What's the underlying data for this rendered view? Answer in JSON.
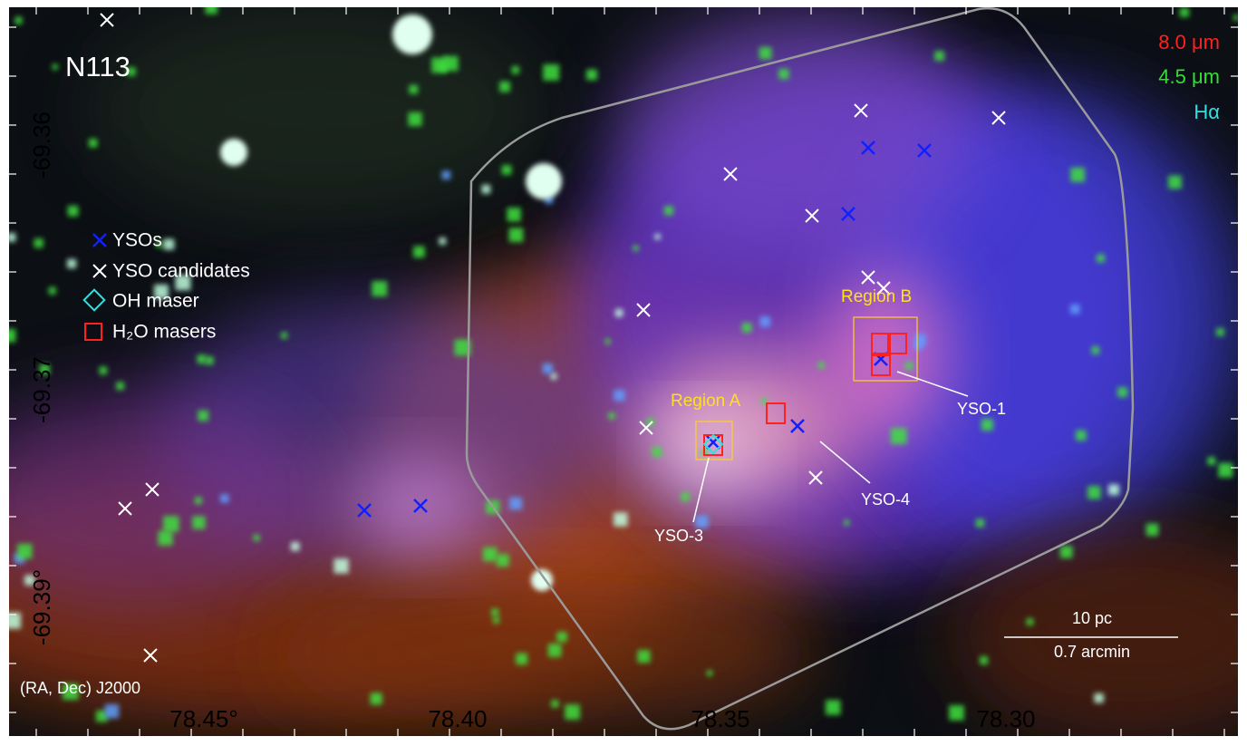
{
  "title": "N113",
  "bands": [
    {
      "label": "8.0 μm",
      "color": "#ff2020"
    },
    {
      "label": "4.5 μm",
      "color": "#30e030"
    },
    {
      "label": "Hα",
      "color": "#30e0e0"
    }
  ],
  "legend": [
    "YSOs",
    "YSO candidates",
    "OH maser",
    "H₂O masers"
  ],
  "regions": [
    "Region A",
    "Region B"
  ],
  "sources": [
    "YSO-1",
    "YSO-3",
    "YSO-4"
  ],
  "scalebar": {
    "top": "10 pc",
    "bottom": "0.7 arcmin"
  },
  "coord_label": "(RA, Dec) J2000",
  "x_ticks": [
    "78.45°",
    "78.40",
    "78.35",
    "78.30"
  ],
  "y_ticks": [
    "-69.36",
    "-69.37",
    "-69.39°"
  ]
}
